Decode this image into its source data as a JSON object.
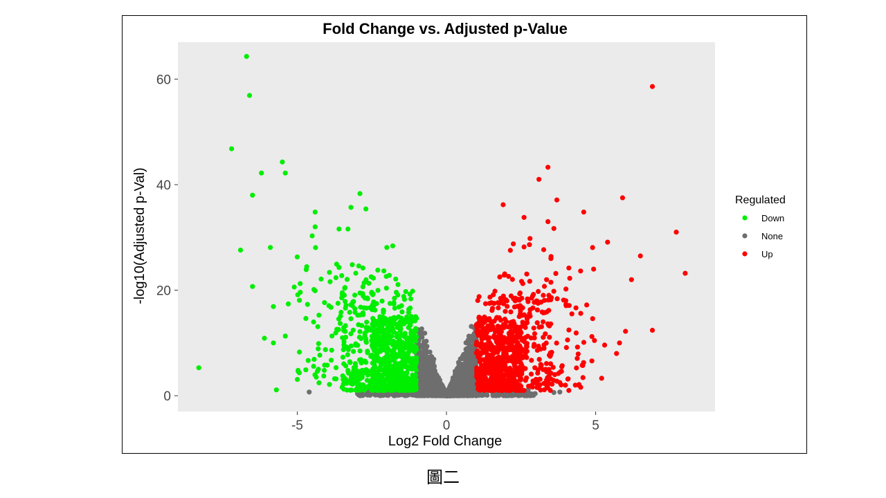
{
  "caption": "圖二",
  "chart_data": {
    "type": "scatter",
    "title": "Fold Change vs. Adjusted p-Value",
    "xlabel": "Log2 Fold Change",
    "ylabel": "-log10(Adjusted p-Val)",
    "xlim": [
      -9,
      9
    ],
    "ylim": [
      -3,
      67
    ],
    "x_ticks": [
      -5,
      0,
      5
    ],
    "y_ticks": [
      0,
      20,
      40,
      60
    ],
    "grid": false,
    "panel_background": "#ebebeb",
    "legend": {
      "title": "Regulated",
      "position": "right",
      "entries": [
        {
          "label": "Down",
          "color": "#00ee00"
        },
        {
          "label": "None",
          "color": "#6e6e6e"
        },
        {
          "label": "Up",
          "color": "#ff0000"
        }
      ]
    },
    "series": [
      {
        "name": "Down",
        "color": "#00ee00",
        "points": [
          [
            -6.7,
            64.3
          ],
          [
            -6.6,
            56.9
          ],
          [
            -7.2,
            46.8
          ],
          [
            -5.5,
            44.3
          ],
          [
            -5.4,
            42.2
          ],
          [
            -6.2,
            42.2
          ],
          [
            -6.5,
            38.0
          ],
          [
            -2.9,
            38.3
          ],
          [
            -3.2,
            35.7
          ],
          [
            -2.7,
            35.4
          ],
          [
            -4.4,
            34.8
          ],
          [
            -4.4,
            32.0
          ],
          [
            -3.6,
            31.6
          ],
          [
            -3.3,
            31.6
          ],
          [
            -4.5,
            30.3
          ],
          [
            -6.9,
            27.6
          ],
          [
            -5.9,
            28.1
          ],
          [
            -1.8,
            28.4
          ],
          [
            -2.0,
            28.1
          ],
          [
            -5.0,
            26.3
          ],
          [
            -6.5,
            20.7
          ],
          [
            -5.8,
            16.9
          ],
          [
            -5.3,
            17.4
          ],
          [
            -6.1,
            10.9
          ],
          [
            -5.8,
            10.0
          ],
          [
            -5.4,
            11.3
          ],
          [
            -8.3,
            5.3
          ],
          [
            -5.7,
            1.1
          ],
          [
            -4.7,
            23.9
          ],
          [
            -4.2,
            22.1
          ],
          [
            -3.6,
            24.3
          ],
          [
            -2.8,
            24.2
          ],
          [
            -2.3,
            23.8
          ],
          [
            -3.9,
            21.6
          ],
          [
            -1.7,
            22.1
          ],
          [
            -5.1,
            20.6
          ],
          [
            -4.9,
            19.6
          ],
          [
            -4.4,
            19.9
          ],
          [
            -3.4,
            20.5
          ],
          [
            -2.6,
            21.3
          ]
        ],
        "clusters": [
          {
            "x_range": [
              -2.5,
              -1.0
            ],
            "y_range": [
              1.0,
              15.0
            ],
            "count": 480
          },
          {
            "x_range": [
              -3.5,
              -1.0
            ],
            "y_range": [
              1.0,
              20.0
            ],
            "count": 260
          },
          {
            "x_range": [
              -4.5,
              -1.5
            ],
            "y_range": [
              2.0,
              24.0
            ],
            "count": 110
          },
          {
            "x_range": [
              -5.0,
              -2.0
            ],
            "y_range": [
              3.0,
              30.0
            ],
            "count": 40
          }
        ]
      },
      {
        "name": "None",
        "color": "#6e6e6e",
        "points": [
          [
            -4.6,
            0.7
          ],
          [
            3.6,
            0.6
          ],
          [
            3.8,
            0.7
          ]
        ],
        "clusters": [
          {
            "x_range": [
              -1.0,
              1.0
            ],
            "y_range": [
              0.0,
              16.0
            ],
            "count": 2200,
            "shape": "volcano"
          },
          {
            "x_range": [
              -3.0,
              3.0
            ],
            "y_range": [
              0.0,
              1.2
            ],
            "count": 400
          }
        ]
      },
      {
        "name": "Up",
        "color": "#ff0000",
        "points": [
          [
            6.9,
            58.6
          ],
          [
            3.4,
            43.3
          ],
          [
            3.1,
            41.0
          ],
          [
            5.9,
            37.5
          ],
          [
            3.7,
            37.1
          ],
          [
            1.9,
            36.2
          ],
          [
            4.6,
            34.8
          ],
          [
            2.6,
            33.8
          ],
          [
            3.4,
            33.0
          ],
          [
            3.6,
            31.7
          ],
          [
            7.7,
            31.0
          ],
          [
            2.8,
            29.8
          ],
          [
            5.4,
            29.1
          ],
          [
            2.6,
            28.2
          ],
          [
            6.5,
            26.5
          ],
          [
            3.5,
            26.0
          ],
          [
            4.1,
            24.2
          ],
          [
            8.0,
            23.2
          ],
          [
            6.2,
            22.0
          ],
          [
            3.5,
            21.5
          ],
          [
            4.0,
            18.0
          ],
          [
            4.7,
            17.2
          ],
          [
            4.5,
            15.6
          ],
          [
            4.9,
            14.6
          ],
          [
            6.0,
            12.2
          ],
          [
            6.9,
            12.4
          ],
          [
            5.8,
            10.0
          ],
          [
            5.3,
            9.6
          ],
          [
            5.7,
            8.0
          ],
          [
            5.2,
            3.3
          ],
          [
            4.5,
            1.6
          ],
          [
            4.1,
            1.0
          ],
          [
            3.4,
            2.6
          ],
          [
            3.0,
            3.1
          ]
        ],
        "clusters": [
          {
            "x_range": [
              1.0,
              2.5
            ],
            "y_range": [
              1.0,
              15.0
            ],
            "count": 460
          },
          {
            "x_range": [
              1.0,
              3.5
            ],
            "y_range": [
              1.0,
              20.0
            ],
            "count": 260
          },
          {
            "x_range": [
              1.5,
              4.5
            ],
            "y_range": [
              2.0,
              24.0
            ],
            "count": 110
          },
          {
            "x_range": [
              2.0,
              5.0
            ],
            "y_range": [
              3.0,
              30.0
            ],
            "count": 40
          }
        ]
      }
    ]
  }
}
